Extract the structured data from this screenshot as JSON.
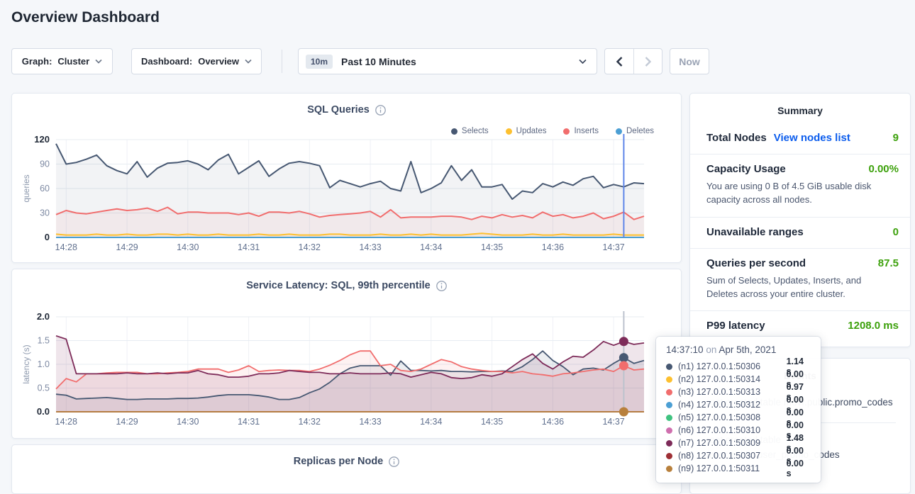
{
  "page": {
    "title": "Overview Dashboard",
    "background": "#f5f7fa"
  },
  "controls": {
    "graph_dropdown": {
      "label": "Graph:",
      "value": "Cluster"
    },
    "dashboard_dropdown": {
      "label": "Dashboard:",
      "value": "Overview"
    },
    "time_picker": {
      "badge": "10m",
      "label": "Past 10 Minutes"
    },
    "now_button": {
      "label": "Now",
      "disabled": true
    }
  },
  "colors": {
    "accent_green": "#3da10c",
    "link_blue": "#0b5ced",
    "crosshair_blue": "#5f86e8",
    "crosshair_gray": "#bcc2cd",
    "selects_navy": "#475872",
    "updates_yellow": "#fdc02f",
    "inserts_red": "#f16d6d",
    "deletes_blue": "#4b9fd4",
    "n5_green": "#3fc380",
    "n6_pink": "#cf6fae",
    "n7_plum": "#7d2b59",
    "n8_maroon": "#9e2f35",
    "n9_gold": "#b8803c"
  },
  "chart_data": [
    {
      "type": "line",
      "name": "sql-queries",
      "title": "SQL Queries",
      "ylabel": "queries",
      "ylim": [
        0,
        120
      ],
      "yticks": [
        0,
        30,
        60,
        90,
        120
      ],
      "ytick_labels": [
        "0",
        "30",
        "60",
        "90",
        "120"
      ],
      "grid": true,
      "legend_position": "top-right",
      "x_start": "14:27:50",
      "x_step_seconds": 10,
      "xticks": [
        "14:28",
        "14:29",
        "14:30",
        "14:31",
        "14:32",
        "14:33",
        "14:34",
        "14:35",
        "14:36",
        "14:37"
      ],
      "xtick_start_index": 1,
      "xtick_step": 6,
      "crosshair": {
        "x": "14:37:10",
        "index": 56,
        "color": "#5f86e8",
        "dots": []
      },
      "series": [
        {
          "name": "Deletes",
          "color": "#4b9fd4",
          "width": 2,
          "flat": 0
        },
        {
          "name": "Updates",
          "color": "#fdc02f",
          "width": 2,
          "fill": true,
          "fill_opacity": 0.08,
          "values": [
            4,
            3,
            3,
            3,
            4,
            3,
            3,
            4,
            3,
            3,
            4,
            4,
            3,
            4,
            3,
            3,
            4,
            3,
            3,
            3,
            4,
            3,
            3,
            4,
            3,
            3,
            3,
            4,
            4,
            3,
            3,
            3,
            4,
            3,
            3,
            4,
            3,
            4,
            3,
            3,
            3,
            4,
            5,
            4,
            3,
            3,
            3,
            4,
            3,
            3,
            4,
            3,
            3,
            3,
            3,
            4,
            3,
            3,
            3
          ]
        },
        {
          "name": "Inserts",
          "color": "#f16d6d",
          "width": 2,
          "fill": true,
          "fill_opacity": 0.07,
          "values": [
            28,
            33,
            30,
            29,
            31,
            33,
            35,
            33,
            34,
            36,
            32,
            37,
            29,
            31,
            31,
            30,
            30,
            30,
            28,
            30,
            26,
            31,
            31,
            30,
            32,
            29,
            25,
            27,
            28,
            29,
            30,
            32,
            25,
            34,
            24,
            25,
            25,
            25,
            26,
            26,
            25,
            22,
            26,
            24,
            28,
            25,
            27,
            24,
            31,
            26,
            28,
            24,
            26,
            30,
            23,
            26,
            31,
            22,
            26
          ]
        },
        {
          "name": "Selects",
          "color": "#475872",
          "width": 2,
          "fill": true,
          "fill_opacity": 0.07,
          "values": [
            115,
            90,
            92,
            96,
            101,
            88,
            82,
            78,
            93,
            74,
            85,
            91,
            92,
            94,
            90,
            83,
            95,
            102,
            78,
            86,
            94,
            75,
            84,
            91,
            93,
            91,
            88,
            61,
            70,
            66,
            62,
            66,
            69,
            60,
            57,
            93,
            55,
            60,
            67,
            88,
            70,
            83,
            62,
            62,
            65,
            47,
            57,
            55,
            66,
            62,
            68,
            64,
            72,
            75,
            61,
            65,
            62,
            67,
            66
          ]
        }
      ]
    },
    {
      "type": "line",
      "name": "service-latency",
      "title": "Service Latency: SQL, 99th percentile",
      "ylabel": "latency (s)",
      "ylim": [
        0,
        2.0
      ],
      "yticks": [
        0,
        0.5,
        1.0,
        1.5,
        2.0
      ],
      "ytick_labels": [
        "0.0",
        "0.5",
        "1.0",
        "1.5",
        "2.0"
      ],
      "grid": true,
      "x_start": "14:27:50",
      "x_step_seconds": 10,
      "xticks": [
        "14:28",
        "14:29",
        "14:30",
        "14:31",
        "14:32",
        "14:33",
        "14:34",
        "14:35",
        "14:36",
        "14:37"
      ],
      "xtick_start_index": 1,
      "xtick_step": 6,
      "crosshair": {
        "x": "14:37:10",
        "index": 56,
        "color": "#bcc2cd",
        "dots": [
          {
            "color": "#7d2b59",
            "value": 1.48
          },
          {
            "color": "#475872",
            "value": 1.14
          },
          {
            "color": "#f16d6d",
            "value": 0.97
          },
          {
            "color": "#b8803c",
            "value": 0
          }
        ]
      },
      "series": [
        {
          "name": "(n2) 127.0.0.1:50314",
          "color": "#fdc02f",
          "width": 1.6,
          "flat": 0
        },
        {
          "name": "(n4) 127.0.0.1:50312",
          "color": "#4b9fd4",
          "width": 1.6,
          "flat": 0
        },
        {
          "name": "(n5) 127.0.0.1:50308",
          "color": "#3fc380",
          "width": 1.6,
          "flat": 0
        },
        {
          "name": "(n6) 127.0.0.1:50310",
          "color": "#cf6fae",
          "width": 1.6,
          "flat": 0
        },
        {
          "name": "(n8) 127.0.0.1:50307",
          "color": "#9e2f35",
          "width": 1.6,
          "flat": 0
        },
        {
          "name": "(n1) 127.0.0.1:50306",
          "color": "#475872",
          "width": 1.8,
          "fill": true,
          "fill_opacity": 0.1,
          "values": [
            0.37,
            0.35,
            0.27,
            0.28,
            0.29,
            0.3,
            0.28,
            0.26,
            0.26,
            0.27,
            0.27,
            0.27,
            0.28,
            0.28,
            0.29,
            0.31,
            0.34,
            0.36,
            0.36,
            0.36,
            0.34,
            0.31,
            0.26,
            0.26,
            0.3,
            0.4,
            0.48,
            0.62,
            0.8,
            0.92,
            0.97,
            0.97,
            0.97,
            0.77,
            1.07,
            0.87,
            0.87,
            0.86,
            0.87,
            0.85,
            0.85,
            0.84,
            0.85,
            0.85,
            0.86,
            0.85,
            0.95,
            1.1,
            1.28,
            1.08,
            0.95,
            0.78,
            0.9,
            0.92,
            0.88,
            1.02,
            1.14,
            1.02,
            1.08
          ]
        },
        {
          "name": "(n3) 127.0.0.1:50313",
          "color": "#f16d6d",
          "width": 1.8,
          "fill": true,
          "fill_opacity": 0.09,
          "values": [
            0.48,
            0.7,
            0.63,
            0.8,
            0.8,
            0.82,
            0.83,
            0.83,
            0.83,
            0.8,
            0.8,
            0.82,
            0.83,
            0.85,
            0.9,
            0.9,
            0.9,
            0.83,
            0.88,
            0.97,
            0.85,
            0.87,
            0.88,
            0.87,
            0.87,
            0.85,
            0.9,
            0.98,
            1.08,
            1.2,
            1.28,
            1.28,
            0.97,
            1.0,
            0.87,
            0.85,
            0.9,
            1.0,
            1.1,
            1.05,
            0.95,
            0.9,
            0.87,
            0.85,
            0.85,
            0.82,
            0.85,
            0.8,
            0.78,
            0.75,
            0.8,
            0.82,
            0.85,
            0.88,
            0.9,
            0.85,
            0.97,
            0.88,
            0.9
          ]
        },
        {
          "name": "(n7) 127.0.0.1:50309",
          "color": "#7d2b59",
          "width": 1.8,
          "fill": true,
          "fill_opacity": 0.12,
          "values": [
            1.6,
            1.53,
            0.8,
            0.8,
            0.8,
            0.8,
            0.8,
            0.82,
            0.8,
            0.8,
            0.82,
            0.8,
            0.82,
            0.82,
            0.87,
            0.8,
            0.78,
            0.73,
            0.73,
            0.75,
            0.8,
            0.8,
            0.82,
            0.87,
            0.85,
            0.83,
            0.83,
            0.8,
            0.8,
            0.82,
            0.8,
            0.8,
            0.8,
            0.82,
            0.8,
            0.73,
            0.78,
            0.83,
            0.8,
            0.72,
            0.7,
            0.72,
            0.78,
            0.75,
            0.8,
            0.95,
            1.1,
            1.22,
            1.02,
            0.9,
            1.05,
            1.17,
            1.15,
            1.3,
            1.48,
            1.4,
            1.48,
            1.42,
            1.45
          ]
        },
        {
          "name": "(n9) 127.0.0.1:50311",
          "color": "#b8803c",
          "width": 1.8,
          "flat": 0
        }
      ]
    },
    {
      "type": "line",
      "name": "replicas-per-node",
      "title": "Replicas per Node"
    }
  ],
  "tooltip": {
    "time": "14:37:10",
    "conj": "on",
    "date": "Apr 5th, 2021",
    "rows": [
      {
        "color": "#475872",
        "node": "(n1) 127.0.0.1:50306",
        "value": "1.14 s"
      },
      {
        "color": "#fdc02f",
        "node": "(n2) 127.0.0.1:50314",
        "value": "0.00 s"
      },
      {
        "color": "#f16d6d",
        "node": "(n3) 127.0.0.1:50313",
        "value": "0.97 s"
      },
      {
        "color": "#4b9fd4",
        "node": "(n4) 127.0.0.1:50312",
        "value": "0.00 s"
      },
      {
        "color": "#3fc380",
        "node": "(n5) 127.0.0.1:50308",
        "value": "0.00 s"
      },
      {
        "color": "#cf6fae",
        "node": "(n6) 127.0.0.1:50310",
        "value": "0.00 s"
      },
      {
        "color": "#7d2b59",
        "node": "(n7) 127.0.0.1:50309",
        "value": "1.48 s"
      },
      {
        "color": "#9e2f35",
        "node": "(n8) 127.0.0.1:50307",
        "value": "0.00 s"
      },
      {
        "color": "#b8803c",
        "node": "(n9) 127.0.0.1:50311",
        "value": "0.00 s"
      }
    ]
  },
  "summary": {
    "title": "Summary",
    "sections": [
      {
        "label": "Total Nodes",
        "link": "View nodes list",
        "value": "9"
      },
      {
        "label": "Capacity Usage",
        "value": "0.00%",
        "desc": "You are using 0 B of 4.5 GiB usable disk capacity across all nodes."
      },
      {
        "label": "Unavailable ranges",
        "value": "0"
      },
      {
        "label": "Queries per second",
        "value": "87.5",
        "desc": "Sum of Selects, Updates, Inserts, and Deletes across your entire cluster."
      },
      {
        "label": "P99 latency",
        "value": "1208.0 ms"
      }
    ]
  },
  "events": {
    "title": "Events",
    "items": [
      {
        "text": "root created table movr.public.promo_codes"
      },
      {
        "text": "root created table movr.public.user_promo_codes"
      }
    ]
  }
}
